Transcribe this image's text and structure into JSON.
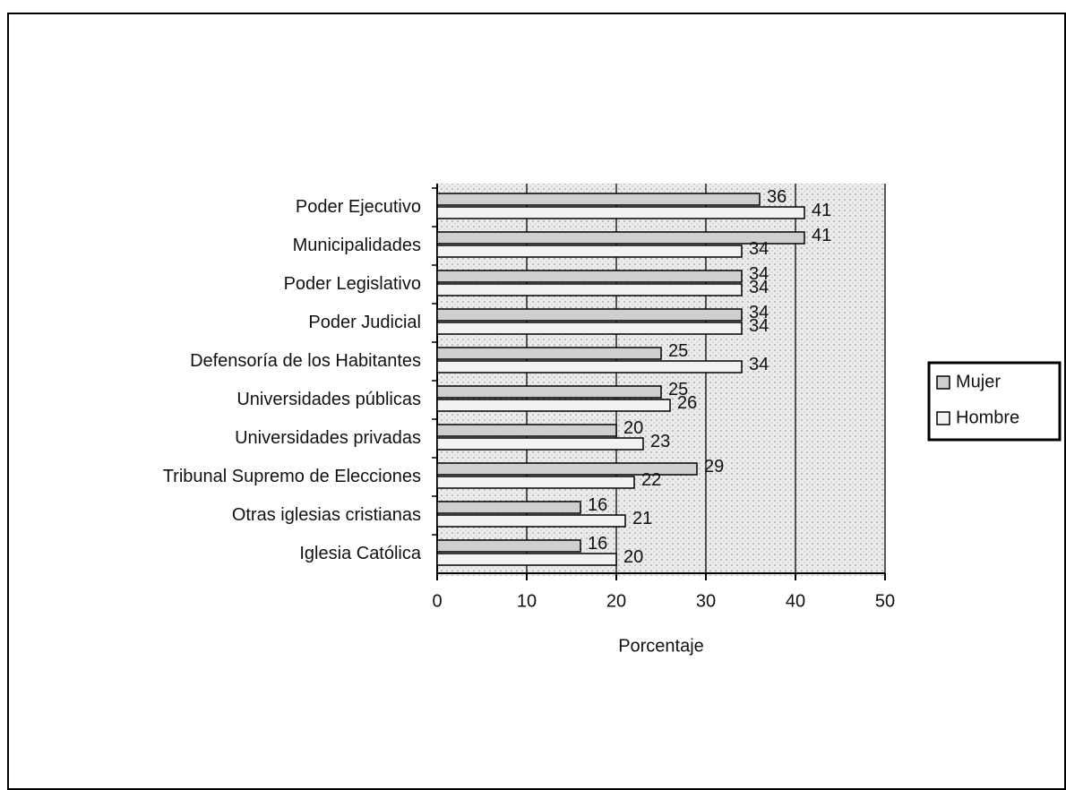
{
  "chart_data": {
    "type": "bar",
    "orientation": "horizontal",
    "categories": [
      "Poder Ejecutivo",
      "Municipalidades",
      "Poder Legislativo",
      "Poder Judicial",
      "Defensoría de los Habitantes",
      "Universidades públicas",
      "Universidades privadas",
      "Tribunal Supremo de Elecciones",
      "Otras iglesias cristianas",
      "Iglesia Católica"
    ],
    "series": [
      {
        "name": "Mujer",
        "color": "#cfcfcf",
        "values": [
          36,
          41,
          34,
          34,
          25,
          25,
          20,
          29,
          16,
          16
        ]
      },
      {
        "name": "Hombre",
        "color": "#f2f2f2",
        "values": [
          41,
          34,
          34,
          34,
          34,
          26,
          23,
          22,
          21,
          20
        ]
      }
    ],
    "xlabel": "Porcentaje",
    "xlim": [
      0,
      50
    ],
    "xticks": [
      0,
      10,
      20,
      30,
      40,
      50
    ],
    "grid": true,
    "legend": "right"
  }
}
